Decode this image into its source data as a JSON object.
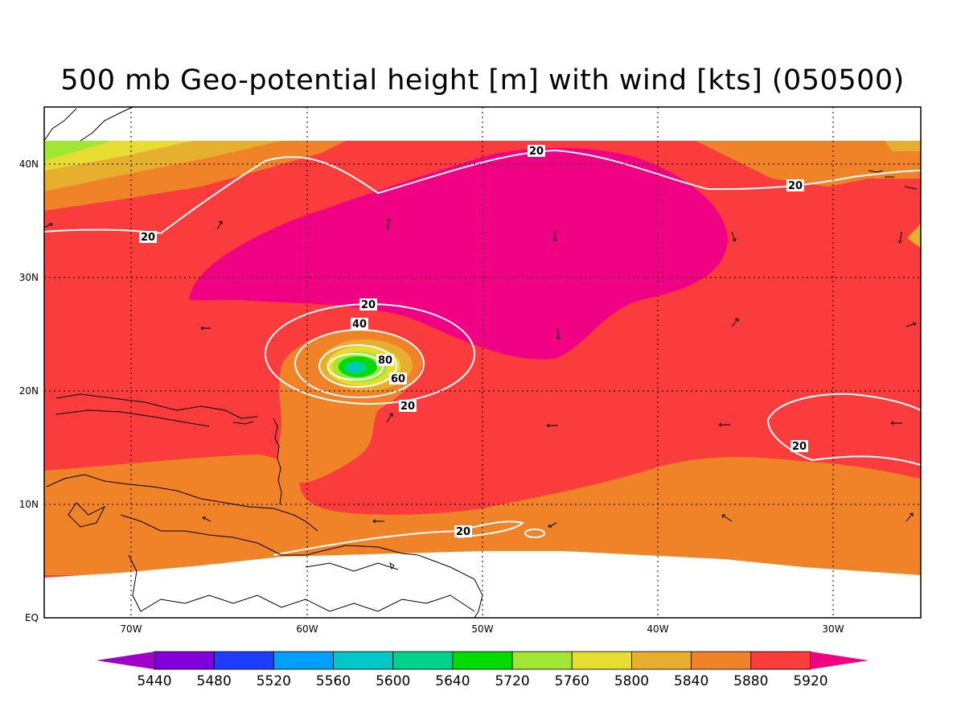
{
  "title": "500 mb Geo-potential height [m] with wind [kts] (050500)",
  "axes": {
    "lon_labels": [
      "70W",
      "60W",
      "50W",
      "40W",
      "30W"
    ],
    "lat_labels": [
      "EQ",
      "10N",
      "20N",
      "30N",
      "40N"
    ]
  },
  "colorbar": {
    "levels": [
      "5440",
      "5480",
      "5520",
      "5560",
      "5600",
      "5640",
      "5720",
      "5760",
      "5800",
      "5840",
      "5880",
      "5920"
    ],
    "colors": [
      "#a000c8",
      "#8200dc",
      "#1e3cff",
      "#00a0ff",
      "#00c8c8",
      "#00d28c",
      "#00dc00",
      "#a0e632",
      "#e6dc32",
      "#e6af2d",
      "#f08228",
      "#fa3c3c",
      "#f00082"
    ]
  },
  "contour_labels": [
    "20",
    "20",
    "20",
    "20",
    "40",
    "80",
    "60",
    "20",
    "20",
    "20"
  ],
  "colors": {
    "c5840": "#e6af2d",
    "c5880": "#f08228",
    "c5920": "#fa3c3c",
    "cmax": "#f00082",
    "c5800": "#e6dc32",
    "c5760": "#a0e632",
    "c5720": "#00dc00",
    "contour": "#ffffff"
  }
}
